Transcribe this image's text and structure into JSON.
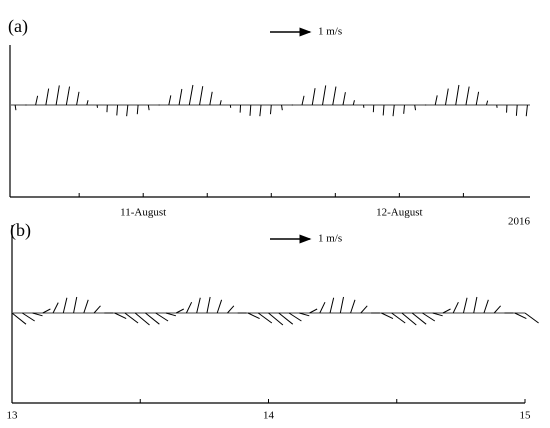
{
  "chart_data": [
    {
      "type": "stick",
      "panel_label": "(a)",
      "reference": {
        "value": 1,
        "label": "1 m/s"
      },
      "xlim": [
        10.48,
        12.51
      ],
      "xticks": [
        {
          "value": 11,
          "label": "11-August"
        },
        {
          "value": 12,
          "label": "12-August"
        }
      ],
      "minor_xticks": [
        10.75,
        11.25,
        11.5,
        11.75,
        12.25
      ],
      "year_label": "2016",
      "x": [
        10.5,
        10.54,
        10.58,
        10.62,
        10.66,
        10.7,
        10.74,
        10.78,
        10.82,
        10.86,
        10.9,
        10.94,
        10.98,
        11.02,
        11.06,
        11.1,
        11.14,
        11.18,
        11.22,
        11.26,
        11.3,
        11.34,
        11.38,
        11.42,
        11.46,
        11.5,
        11.54,
        11.58,
        11.62,
        11.66,
        11.7,
        11.74,
        11.78,
        11.82,
        11.86,
        11.9,
        11.94,
        11.98,
        12.02,
        12.06,
        12.1,
        12.14,
        12.18,
        12.22,
        12.26,
        12.3,
        12.34,
        12.38,
        12.42,
        12.46,
        12.5
      ],
      "u": [
        0.02,
        0.03,
        0.05,
        0.07,
        0.08,
        0.08,
        0.06,
        0.03,
        0.01,
        -0.01,
        -0.02,
        -0.03,
        -0.02,
        0.02,
        0.03,
        0.05,
        0.07,
        0.09,
        0.08,
        0.06,
        0.03,
        0.01,
        -0.01,
        -0.02,
        -0.03,
        -0.02,
        0.02,
        0.03,
        0.05,
        0.07,
        0.08,
        0.08,
        0.06,
        0.03,
        0.01,
        -0.01,
        -0.02,
        -0.03,
        -0.02,
        0.02,
        0.03,
        0.05,
        0.07,
        0.08,
        0.08,
        0.06,
        0.03,
        0.01,
        -0.01,
        -0.02,
        -0.03
      ],
      "v": [
        -0.13,
        0,
        0.23,
        0.41,
        0.49,
        0.46,
        0.33,
        0.12,
        -0.07,
        -0.18,
        -0.26,
        -0.28,
        -0.23,
        -0.13,
        0,
        0.24,
        0.4,
        0.5,
        0.47,
        0.33,
        0.12,
        -0.07,
        -0.19,
        -0.27,
        -0.28,
        -0.23,
        -0.13,
        0,
        0.23,
        0.42,
        0.49,
        0.46,
        0.32,
        0.12,
        -0.07,
        -0.18,
        -0.26,
        -0.28,
        -0.22,
        -0.13,
        0,
        0.24,
        0.41,
        0.5,
        0.46,
        0.33,
        0.11,
        -0.07,
        -0.19,
        -0.27,
        -0.28
      ]
    },
    {
      "type": "stick",
      "panel_label": "(b)",
      "reference": {
        "value": 1,
        "label": "1 m/s"
      },
      "xlim": [
        13,
        15
      ],
      "xticks": [
        13,
        14,
        15
      ],
      "minor_xticks": [
        13.5,
        14.5
      ],
      "x": [
        13,
        13.04,
        13.08,
        13.12,
        13.16,
        13.2,
        13.24,
        13.28,
        13.32,
        13.36,
        13.4,
        13.44,
        13.48,
        13.52,
        13.56,
        13.6,
        13.64,
        13.68,
        13.72,
        13.76,
        13.8,
        13.84,
        13.88,
        13.92,
        13.96,
        14,
        14.04,
        14.08,
        14.12,
        14.16,
        14.2,
        14.24,
        14.28,
        14.32,
        14.36,
        14.4,
        14.44,
        14.48,
        14.52,
        14.56,
        14.6,
        14.64,
        14.68,
        14.72,
        14.76,
        14.8,
        14.84,
        14.88,
        14.92,
        14.96,
        15
      ],
      "u": [
        0.35,
        0.31,
        0.25,
        0.19,
        0.13,
        0.09,
        0.08,
        0.11,
        0.16,
        0.22,
        0.29,
        0.33,
        0.36,
        0.35,
        0.31,
        0.25,
        0.19,
        0.13,
        0.09,
        0.08,
        0.11,
        0.16,
        0.22,
        0.29,
        0.34,
        0.36,
        0.35,
        0.31,
        0.25,
        0.19,
        0.13,
        0.09,
        0.08,
        0.11,
        0.16,
        0.22,
        0.29,
        0.34,
        0.36,
        0.35,
        0.31,
        0.25,
        0.19,
        0.13,
        0.09,
        0.08,
        0.11,
        0.16,
        0.22,
        0.29,
        0.34
      ],
      "v": [
        -0.28,
        -0.2,
        -0.07,
        0.1,
        0.26,
        0.38,
        0.4,
        0.33,
        0.18,
        0,
        -0.14,
        -0.25,
        -0.3,
        -0.28,
        -0.2,
        -0.07,
        0.1,
        0.27,
        0.38,
        0.4,
        0.33,
        0.18,
        0,
        -0.14,
        -0.25,
        -0.3,
        -0.28,
        -0.2,
        -0.07,
        0.1,
        0.27,
        0.38,
        0.4,
        0.33,
        0.18,
        0,
        -0.14,
        -0.25,
        -0.3,
        -0.28,
        -0.2,
        -0.07,
        0.1,
        0.27,
        0.38,
        0.4,
        0.33,
        0.18,
        0,
        -0.14,
        -0.25
      ]
    }
  ]
}
